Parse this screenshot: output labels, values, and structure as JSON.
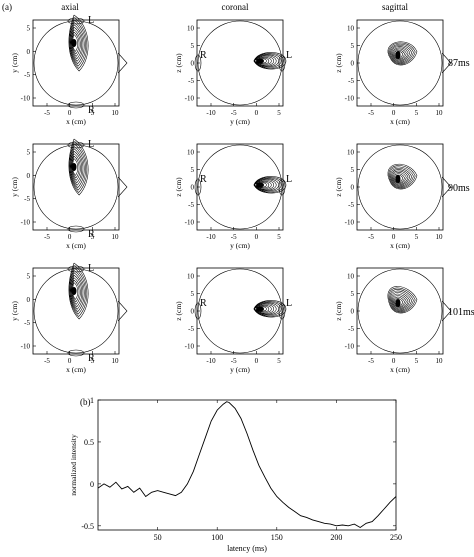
{
  "figure": {
    "panel_a_label": "(a)",
    "panel_b_label": "(b)",
    "columns": [
      "axial",
      "coronal",
      "sagittal"
    ],
    "rows": [
      "87ms",
      "90ms",
      "101ms"
    ],
    "axial": {
      "xlabel": "x (cm)",
      "ylabel": "y (cm)",
      "top_marker": "L",
      "bottom_marker": "R",
      "xticks": [
        "-5",
        "0",
        "5",
        "10"
      ],
      "yticks": [
        "5",
        "0",
        "-5",
        "-10"
      ]
    },
    "coronal": {
      "xlabel": "y (cm)",
      "ylabel": "z (cm)",
      "left_marker": "R",
      "right_marker": "L",
      "xticks": [
        "-10",
        "-5",
        "0",
        "5"
      ],
      "yticks": [
        "10",
        "5",
        "0",
        "-5",
        "-10"
      ]
    },
    "sagittal": {
      "xlabel": "x (cm)",
      "ylabel": "z (cm)",
      "xticks": [
        "-5",
        "0",
        "5",
        "10"
      ],
      "yticks": [
        "10",
        "5",
        "0",
        "-5",
        "-10"
      ]
    }
  },
  "chart_data": {
    "type": "line",
    "title": "",
    "xlabel": "latency (ms)",
    "ylabel": "normalized intensity",
    "xlim": [
      0,
      250
    ],
    "ylim": [
      -0.55,
      1.0
    ],
    "xticks": [
      50,
      100,
      150,
      200,
      250
    ],
    "yticks": [
      1,
      0.5,
      0,
      -0.5
    ],
    "series": [
      {
        "x": [
          0,
          5,
          10,
          15,
          20,
          25,
          30,
          35,
          40,
          45,
          50,
          55,
          60,
          65,
          70,
          75,
          80,
          85,
          90,
          95,
          100,
          105,
          108,
          110,
          115,
          120,
          125,
          130,
          135,
          140,
          145,
          150,
          155,
          160,
          165,
          170,
          175,
          180,
          185,
          190,
          195,
          200,
          205,
          210,
          215,
          220,
          225,
          230,
          235,
          240,
          245,
          250
        ],
        "values": [
          -0.05,
          0.0,
          -0.04,
          0.02,
          -0.06,
          -0.03,
          -0.1,
          -0.05,
          -0.15,
          -0.1,
          -0.08,
          -0.1,
          -0.12,
          -0.14,
          -0.1,
          0.0,
          0.15,
          0.35,
          0.55,
          0.75,
          0.88,
          0.95,
          0.98,
          0.97,
          0.9,
          0.78,
          0.6,
          0.4,
          0.22,
          0.08,
          -0.05,
          -0.15,
          -0.22,
          -0.28,
          -0.33,
          -0.38,
          -0.4,
          -0.43,
          -0.45,
          -0.47,
          -0.48,
          -0.5,
          -0.49,
          -0.5,
          -0.48,
          -0.52,
          -0.47,
          -0.45,
          -0.38,
          -0.3,
          -0.22,
          -0.15
        ]
      }
    ]
  }
}
